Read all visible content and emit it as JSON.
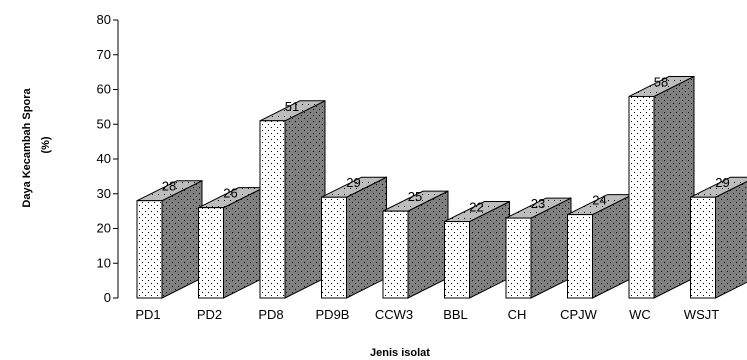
{
  "chart_data": {
    "type": "bar",
    "style": "3d-bar",
    "categories": [
      "PD1",
      "PD2",
      "PD8",
      "PD9B",
      "CCW3",
      "BBL",
      "CH",
      "CPJW",
      "WC",
      "WSJT"
    ],
    "values": [
      28,
      26,
      51,
      29,
      25,
      22,
      23,
      24,
      58,
      29
    ],
    "data_labels": [
      "28",
      "26",
      "51",
      "29",
      "25",
      "22",
      "23",
      "24",
      "58",
      "29"
    ],
    "yticks": [
      "0",
      "10",
      "20",
      "30",
      "40",
      "50",
      "60",
      "70",
      "80"
    ],
    "ylim": [
      0,
      80
    ],
    "xlabel": "Jenis isolat",
    "ylabel_line1": "Daya Kecambah Spora",
    "ylabel_line2": "(%)",
    "grid": false,
    "colors": {
      "front_face": "#ffffff",
      "side_face": "#808080",
      "top_face": "#bdbdbd",
      "dots": "#000000"
    }
  }
}
